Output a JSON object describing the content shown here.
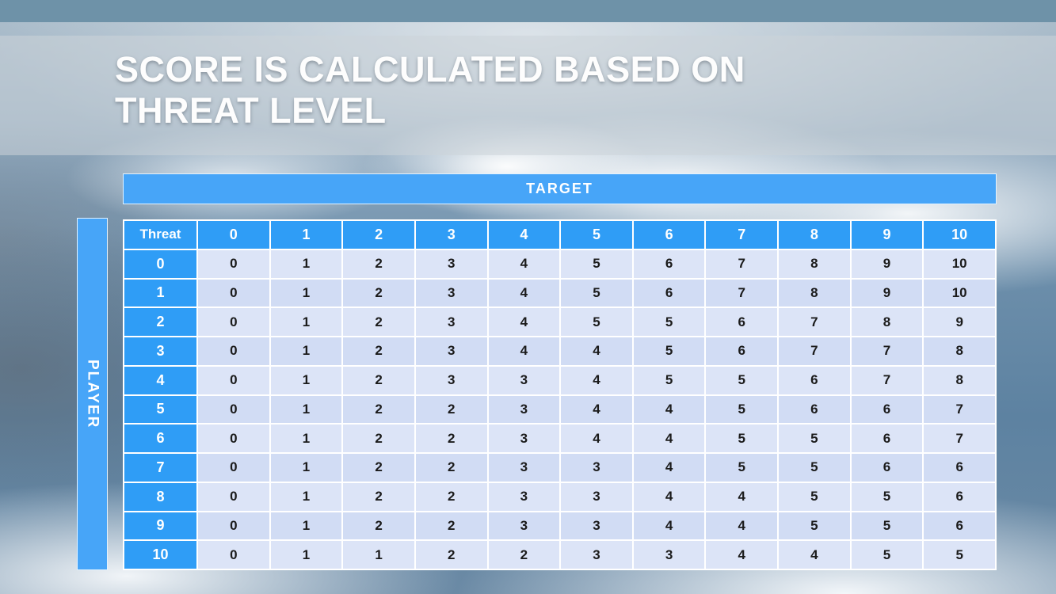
{
  "slide": {
    "title_line1": "SCORE IS CALCULATED BASED ON",
    "title_line2": "THREAT LEVEL"
  },
  "table": {
    "target_label": "TARGET",
    "player_label": "PLAYER",
    "corner_label": "Threat",
    "column_headers": [
      "0",
      "1",
      "2",
      "3",
      "4",
      "5",
      "6",
      "7",
      "8",
      "9",
      "10"
    ],
    "rows": [
      {
        "label": "0",
        "values": [
          "0",
          "1",
          "2",
          "3",
          "4",
          "5",
          "6",
          "7",
          "8",
          "9",
          "10"
        ]
      },
      {
        "label": "1",
        "values": [
          "0",
          "1",
          "2",
          "3",
          "4",
          "5",
          "6",
          "7",
          "8",
          "9",
          "10"
        ]
      },
      {
        "label": "2",
        "values": [
          "0",
          "1",
          "2",
          "3",
          "4",
          "5",
          "5",
          "6",
          "7",
          "8",
          "9"
        ]
      },
      {
        "label": "3",
        "values": [
          "0",
          "1",
          "2",
          "3",
          "4",
          "4",
          "5",
          "6",
          "7",
          "7",
          "8"
        ]
      },
      {
        "label": "4",
        "values": [
          "0",
          "1",
          "2",
          "3",
          "3",
          "4",
          "5",
          "5",
          "6",
          "7",
          "8"
        ]
      },
      {
        "label": "5",
        "values": [
          "0",
          "1",
          "2",
          "2",
          "3",
          "4",
          "4",
          "5",
          "6",
          "6",
          "7"
        ]
      },
      {
        "label": "6",
        "values": [
          "0",
          "1",
          "2",
          "2",
          "3",
          "4",
          "4",
          "5",
          "5",
          "6",
          "7"
        ]
      },
      {
        "label": "7",
        "values": [
          "0",
          "1",
          "2",
          "2",
          "3",
          "3",
          "4",
          "5",
          "5",
          "6",
          "6"
        ]
      },
      {
        "label": "8",
        "values": [
          "0",
          "1",
          "2",
          "2",
          "3",
          "3",
          "4",
          "4",
          "5",
          "5",
          "6"
        ]
      },
      {
        "label": "9",
        "values": [
          "0",
          "1",
          "2",
          "2",
          "3",
          "3",
          "4",
          "4",
          "5",
          "5",
          "6"
        ]
      },
      {
        "label": "10",
        "values": [
          "0",
          "1",
          "1",
          "2",
          "2",
          "3",
          "3",
          "4",
          "4",
          "5",
          "5"
        ]
      }
    ]
  },
  "colors": {
    "top_bar": "#6e92a8",
    "axis_bar_blue": "#47a5f8",
    "header_blue": "#2f9df6",
    "cell_light": "#dce4f7",
    "cell_alt": "#d1dcf4",
    "cell_text": "#1b1b1b",
    "grid_line": "#ffffff"
  }
}
